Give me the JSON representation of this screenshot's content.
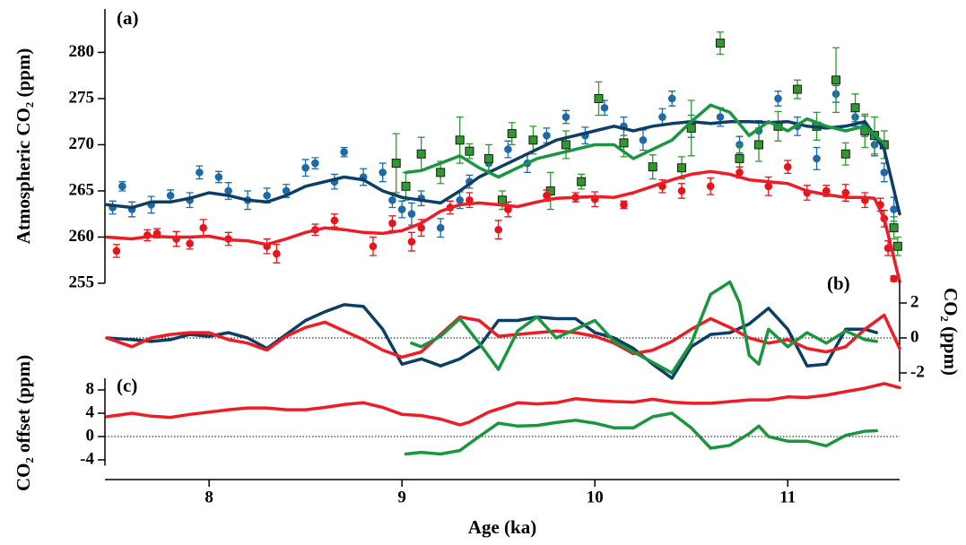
{
  "chart_data": [
    {
      "type": "scatter",
      "panel_label": "(a)",
      "y_label": "Atmospheric CO₂ (ppm)",
      "y_axis_side": "left",
      "xlim": [
        7.46,
        11.58
      ],
      "ylim": [
        255,
        284.7
      ],
      "yticks": [
        255,
        260,
        265,
        270,
        275,
        280
      ],
      "series": [
        {
          "color": "#1c6aa8",
          "marker": "circle",
          "x": [
            7.5,
            7.55,
            7.6,
            7.7,
            7.8,
            7.9,
            7.95,
            8.05,
            8.1,
            8.2,
            8.3,
            8.4,
            8.5,
            8.55,
            8.65,
            8.7,
            8.8,
            8.9,
            8.95,
            9.0,
            9.05,
            9.1,
            9.2,
            9.3,
            9.35,
            9.45,
            9.55,
            9.65,
            9.75,
            9.85,
            9.95,
            10.05,
            10.15,
            10.25,
            10.35,
            10.4,
            10.5,
            10.65,
            10.75,
            10.85,
            10.95,
            11.05,
            11.15,
            11.25,
            11.35,
            11.4,
            11.45,
            11.5,
            11.55
          ],
          "values": [
            263.2,
            265.5,
            263,
            263.5,
            264.5,
            264,
            267,
            266.5,
            265,
            264,
            264.5,
            265,
            267.5,
            268,
            266,
            269.2,
            266.5,
            267,
            264,
            263,
            262.5,
            264.2,
            261,
            264,
            266,
            268,
            269.5,
            268,
            271,
            273,
            271,
            274,
            272,
            270.5,
            273,
            275,
            272,
            273,
            270,
            271.5,
            275,
            272,
            268.5,
            275.5,
            273,
            272,
            270,
            267,
            263
          ],
          "errors": [
            0.7,
            0.5,
            0.8,
            0.9,
            0.6,
            0.8,
            0.7,
            0.6,
            0.9,
            1.0,
            0.8,
            0.7,
            0.9,
            0.6,
            0.8,
            0.5,
            0.9,
            1.0,
            0.8,
            0.9,
            1.2,
            0.8,
            1.0,
            0.9,
            0.7,
            0.8,
            0.9,
            1.0,
            0.8,
            0.7,
            0.9,
            0.8,
            1.0,
            1.1,
            0.9,
            0.8,
            1.2,
            1.0,
            0.9,
            1.1,
            0.8,
            1.0,
            1.2,
            0.9,
            1.0,
            1.1,
            1.2,
            1.0,
            1.3
          ]
        },
        {
          "color": "#2e9a2e",
          "marker": "square",
          "x": [
            8.97,
            9.02,
            9.1,
            9.2,
            9.3,
            9.35,
            9.45,
            9.52,
            9.57,
            9.68,
            9.77,
            9.85,
            9.93,
            10.02,
            10.15,
            10.3,
            10.45,
            10.5,
            10.65,
            10.75,
            10.85,
            10.95,
            11.05,
            11.15,
            11.25,
            11.3,
            11.35,
            11.4,
            11.45,
            11.5,
            11.55,
            11.57
          ],
          "values": [
            268,
            265.5,
            269,
            267,
            270.5,
            269.3,
            268.5,
            264,
            271.2,
            270.5,
            265,
            270,
            266,
            275,
            270.2,
            267.6,
            267.5,
            271.8,
            281,
            268.5,
            270,
            272,
            276,
            272,
            277,
            269,
            274,
            271.5,
            271,
            270,
            261,
            259
          ],
          "errors": [
            3.2,
            1.5,
            1.8,
            1.2,
            2.5,
            0.8,
            1.5,
            1.0,
            1.2,
            1.5,
            2.0,
            1.5,
            0.8,
            1.8,
            1.5,
            1.3,
            1.2,
            3.0,
            1.2,
            1.5,
            1.8,
            1.6,
            1.0,
            1.5,
            3.5,
            1.2,
            1.5,
            1.8,
            2.0,
            1.5,
            1.2,
            1.0
          ]
        },
        {
          "color": "#e8141c",
          "marker": "circle",
          "x": [
            7.52,
            7.68,
            7.73,
            7.83,
            7.9,
            7.97,
            8.1,
            8.3,
            8.35,
            8.55,
            8.65,
            8.85,
            8.95,
            9.05,
            9.1,
            9.25,
            9.35,
            9.5,
            9.55,
            9.75,
            9.9,
            10.0,
            10.15,
            10.35,
            10.45,
            10.6,
            10.75,
            10.9,
            11.0,
            11.1,
            11.2,
            11.3,
            11.4,
            11.48,
            11.5,
            11.52,
            11.55
          ],
          "values": [
            258.5,
            260.2,
            260.4,
            259.8,
            259.3,
            261,
            259.8,
            259,
            258.2,
            260.8,
            261.8,
            259,
            261.5,
            259.5,
            261,
            263.2,
            264,
            260.8,
            263,
            264.5,
            264.3,
            264.1,
            263.5,
            265.5,
            265,
            265.5,
            267,
            265.5,
            267.6,
            264.8,
            265,
            264.8,
            264,
            263.5,
            262,
            258.8,
            255.5
          ],
          "errors": [
            0.7,
            0.6,
            0.5,
            0.8,
            0.6,
            0.9,
            0.7,
            0.8,
            1.0,
            0.6,
            0.7,
            1.0,
            0.8,
            1.0,
            0.9,
            0.7,
            0.8,
            1.0,
            0.8,
            0.6,
            0.5,
            0.8,
            0.4,
            0.7,
            0.8,
            0.9,
            0.6,
            1.0,
            0.7,
            0.8,
            0.6,
            0.9,
            0.8,
            0.7,
            0.9,
            0.8,
            0.3
          ]
        },
        {
          "color": "#0d3f66",
          "x": [
            7.47,
            7.6,
            7.7,
            7.8,
            7.9,
            8.0,
            8.1,
            8.2,
            8.3,
            8.4,
            8.5,
            8.6,
            8.7,
            8.8,
            8.9,
            9.0,
            9.1,
            9.2,
            9.3,
            9.4,
            9.5,
            9.6,
            9.7,
            9.8,
            9.9,
            10.0,
            10.1,
            10.2,
            10.3,
            10.4,
            10.5,
            10.6,
            10.7,
            10.8,
            10.9,
            11.0,
            11.1,
            11.2,
            11.3,
            11.4,
            11.5,
            11.58
          ],
          "values": [
            263.5,
            263.2,
            263.8,
            263.8,
            264.2,
            264.8,
            264.5,
            264,
            263.8,
            264.5,
            265.5,
            266,
            266.5,
            266.2,
            265,
            264.3,
            264,
            263.7,
            265,
            266.5,
            267.5,
            268.5,
            269.5,
            270.5,
            271,
            271.5,
            272,
            271.5,
            272,
            272.3,
            272.5,
            272.3,
            272.5,
            272.5,
            272.4,
            272.5,
            272,
            271.8,
            272,
            272.5,
            269.5,
            262.5
          ]
        },
        {
          "color": "#1a9641",
          "x": [
            9.02,
            9.1,
            9.2,
            9.3,
            9.4,
            9.5,
            9.6,
            9.7,
            9.8,
            9.9,
            10.0,
            10.1,
            10.2,
            10.3,
            10.4,
            10.5,
            10.6,
            10.7,
            10.8,
            10.9,
            11.0,
            11.1,
            11.2,
            11.3,
            11.4,
            11.48
          ],
          "values": [
            267,
            267.2,
            268,
            268.8,
            267.5,
            266.5,
            267.5,
            268.5,
            269,
            269.5,
            270,
            270,
            268.5,
            269.5,
            270.5,
            272.5,
            274.3,
            273.5,
            271,
            272.5,
            271.5,
            272.8,
            272,
            271.5,
            272,
            270.5
          ]
        },
        {
          "color": "#ee1c25",
          "x": [
            7.47,
            7.6,
            7.7,
            7.8,
            7.9,
            8.0,
            8.1,
            8.2,
            8.3,
            8.4,
            8.5,
            8.6,
            8.7,
            8.8,
            8.9,
            9.0,
            9.1,
            9.2,
            9.3,
            9.4,
            9.5,
            9.6,
            9.7,
            9.8,
            9.9,
            10.0,
            10.1,
            10.2,
            10.3,
            10.4,
            10.5,
            10.6,
            10.7,
            10.8,
            10.9,
            11.0,
            11.1,
            11.2,
            11.3,
            11.4,
            11.45,
            11.5,
            11.58
          ],
          "values": [
            260,
            259.8,
            260.1,
            260,
            260,
            260.1,
            259.7,
            259.6,
            259.2,
            259.8,
            260.5,
            261,
            260.8,
            260.5,
            260.4,
            260.7,
            261.5,
            262.8,
            263.5,
            263.7,
            263.5,
            263.3,
            263.8,
            264.2,
            264.3,
            264.4,
            264.3,
            264.8,
            265.5,
            266.2,
            266.8,
            267.1,
            266.8,
            266.2,
            266,
            265.8,
            265,
            264.6,
            264.3,
            264.3,
            264.2,
            262,
            255.2
          ]
        }
      ]
    },
    {
      "type": "line",
      "panel_label": "(b)",
      "y_label": "CO₂ (ppm)",
      "y_axis_side": "right",
      "xlim": [
        7.46,
        11.58
      ],
      "ylim": [
        -2.5,
        3.3
      ],
      "yticks": [
        -2,
        0,
        2
      ],
      "zero_line": 0,
      "series": [
        {
          "color": "#0d3f66",
          "x": [
            7.47,
            7.6,
            7.7,
            7.8,
            7.9,
            8.0,
            8.1,
            8.2,
            8.3,
            8.4,
            8.5,
            8.6,
            8.7,
            8.8,
            8.9,
            9.0,
            9.1,
            9.2,
            9.3,
            9.4,
            9.5,
            9.6,
            9.7,
            9.8,
            9.9,
            10.0,
            10.1,
            10.2,
            10.3,
            10.4,
            10.5,
            10.6,
            10.7,
            10.8,
            10.9,
            11.0,
            11.1,
            11.2,
            11.3,
            11.4,
            11.46
          ],
          "values": [
            0,
            -0.1,
            -0.2,
            -0.1,
            0.2,
            0.1,
            0.3,
            0,
            -0.6,
            0.2,
            1,
            1.5,
            1.9,
            1.8,
            0.5,
            -1.5,
            -1.2,
            -1.6,
            -1.2,
            -0.5,
            1,
            1,
            1.2,
            1.1,
            1.1,
            0.3,
            0,
            -0.6,
            -1.5,
            -2.3,
            -0.5,
            0.2,
            0.3,
            0.8,
            1.7,
            0.5,
            -1.6,
            -1.5,
            0.5,
            0.5,
            0.3
          ]
        },
        {
          "color": "#ee1c25",
          "x": [
            7.47,
            7.6,
            7.7,
            7.8,
            7.9,
            8.0,
            8.1,
            8.2,
            8.3,
            8.4,
            8.5,
            8.6,
            8.7,
            8.8,
            8.9,
            9.0,
            9.1,
            9.2,
            9.3,
            9.4,
            9.5,
            9.6,
            9.7,
            9.8,
            9.9,
            10.0,
            10.1,
            10.2,
            10.3,
            10.4,
            10.5,
            10.6,
            10.7,
            10.8,
            10.9,
            11.0,
            11.1,
            11.2,
            11.3,
            11.4,
            11.5,
            11.58
          ],
          "values": [
            0,
            -0.5,
            0,
            0.2,
            0.3,
            0.3,
            -0.1,
            -0.3,
            -0.7,
            0.1,
            0.6,
            0.9,
            0.4,
            -0.1,
            -0.7,
            -1.1,
            -0.8,
            0.2,
            1.2,
            1,
            0.1,
            0.2,
            0.3,
            0.4,
            0.3,
            0.1,
            -0.3,
            -0.9,
            -0.7,
            -0.2,
            0.5,
            1.1,
            0.6,
            0,
            -0.3,
            -0.1,
            -0.6,
            -0.8,
            -0.5,
            0.5,
            1.3,
            -0.6
          ]
        },
        {
          "color": "#1a9641",
          "x": [
            9.05,
            9.1,
            9.2,
            9.3,
            9.4,
            9.5,
            9.6,
            9.7,
            9.8,
            9.9,
            10.0,
            10.1,
            10.2,
            10.3,
            10.4,
            10.5,
            10.6,
            10.7,
            10.75,
            10.8,
            10.85,
            10.9,
            11.0,
            11.1,
            11.2,
            11.3,
            11.4,
            11.46
          ],
          "values": [
            -0.3,
            -0.5,
            0.1,
            1.1,
            -0.3,
            -1.8,
            0.4,
            1.2,
            0,
            0.5,
            1.0,
            -0.2,
            -0.8,
            -1.4,
            -2.0,
            -0.3,
            2.5,
            3.2,
            2,
            -1,
            -1.5,
            0.5,
            -0.5,
            0.3,
            -0.3,
            0.4,
            -0.1,
            -0.2
          ]
        }
      ]
    },
    {
      "type": "line",
      "panel_label": "(c)",
      "y_label": "CO₂ offset (ppm)",
      "y_axis_side": "left",
      "x_label": "Age (ka)",
      "xlim": [
        7.46,
        11.58
      ],
      "xticks": [
        8,
        9,
        10,
        11
      ],
      "ylim": [
        -5,
        10
      ],
      "yticks": [
        -4,
        0,
        4,
        8
      ],
      "zero_line": 0,
      "series": [
        {
          "color": "#ee1c25",
          "x": [
            7.47,
            7.6,
            7.7,
            7.8,
            7.9,
            8.0,
            8.1,
            8.2,
            8.3,
            8.4,
            8.5,
            8.6,
            8.7,
            8.8,
            8.9,
            9.0,
            9.1,
            9.2,
            9.3,
            9.35,
            9.45,
            9.6,
            9.7,
            9.8,
            9.9,
            10.0,
            10.1,
            10.2,
            10.3,
            10.4,
            10.5,
            10.6,
            10.7,
            10.8,
            10.9,
            11.0,
            11.1,
            11.2,
            11.3,
            11.4,
            11.5,
            11.58
          ],
          "values": [
            3.4,
            4.0,
            3.5,
            3.3,
            3.8,
            4.2,
            4.6,
            4.9,
            4.9,
            4.6,
            4.6,
            5.0,
            5.5,
            5.8,
            5.0,
            3.8,
            3.6,
            3.0,
            2.0,
            2.5,
            4.2,
            5.8,
            5.6,
            5.8,
            6.5,
            6.2,
            6.0,
            5.9,
            6.4,
            5.9,
            5.7,
            5.7,
            6.0,
            6.3,
            6.3,
            6.8,
            6.7,
            7.1,
            7.7,
            8.3,
            9.1,
            8.4
          ]
        },
        {
          "color": "#1a9641",
          "x": [
            9.02,
            9.1,
            9.2,
            9.3,
            9.4,
            9.5,
            9.6,
            9.7,
            9.8,
            9.9,
            10.0,
            10.1,
            10.2,
            10.3,
            10.4,
            10.5,
            10.6,
            10.7,
            10.8,
            10.85,
            10.9,
            11.0,
            11.1,
            11.2,
            11.3,
            11.4,
            11.46
          ],
          "values": [
            -3,
            -2.7,
            -3,
            -2.4,
            0,
            2.3,
            1.8,
            1.9,
            2.4,
            2.8,
            2.3,
            1.5,
            1.5,
            3.4,
            4.0,
            1.5,
            -2.0,
            -1.5,
            0.5,
            1.8,
            0,
            -0.8,
            -0.8,
            -1.6,
            0.2,
            0.9,
            1.0
          ]
        }
      ]
    }
  ]
}
